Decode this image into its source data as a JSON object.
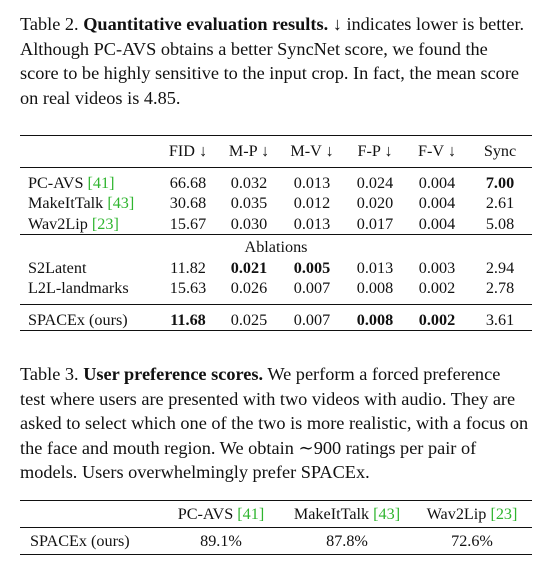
{
  "table2": {
    "caption_label": "Table 2.",
    "caption_title": "Quantitative evaluation results.",
    "caption_text": "↓ indicates lower is better. Although PC-AVS obtains a better SyncNet score, we found the score to be highly sensitive to the input crop. In fact, the mean score on real videos is 4.85.",
    "headers": [
      "",
      "FID ↓",
      "M-P ↓",
      "M-V ↓",
      "F-P ↓",
      "F-V ↓",
      "Sync"
    ],
    "rows_main": [
      {
        "name": "PC-AVS",
        "cite": "[41]",
        "values": [
          "66.68",
          "0.032",
          "0.013",
          "0.024",
          "0.004",
          "7.00"
        ],
        "bold": [
          false,
          false,
          false,
          false,
          false,
          true
        ]
      },
      {
        "name": "MakeItTalk",
        "cite": "[43]",
        "values": [
          "30.68",
          "0.035",
          "0.012",
          "0.020",
          "0.004",
          "2.61"
        ],
        "bold": [
          false,
          false,
          false,
          false,
          false,
          false
        ]
      },
      {
        "name": "Wav2Lip",
        "cite": "[23]",
        "values": [
          "15.67",
          "0.030",
          "0.013",
          "0.017",
          "0.004",
          "5.08"
        ],
        "bold": [
          false,
          false,
          false,
          false,
          false,
          false
        ]
      }
    ],
    "ablations_label": "Ablations",
    "rows_ablation": [
      {
        "name": "S2Latent",
        "cite": "",
        "values": [
          "11.82",
          "0.021",
          "0.005",
          "0.013",
          "0.003",
          "2.94"
        ],
        "bold": [
          false,
          true,
          true,
          false,
          false,
          false
        ]
      },
      {
        "name": "L2L-landmarks",
        "cite": "",
        "values": [
          "15.63",
          "0.026",
          "0.007",
          "0.008",
          "0.002",
          "2.78"
        ],
        "bold": [
          false,
          false,
          false,
          false,
          false,
          false
        ]
      }
    ],
    "row_final": {
      "name": "SPACEx (ours)",
      "cite": "",
      "values": [
        "11.68",
        "0.025",
        "0.007",
        "0.008",
        "0.002",
        "3.61"
      ],
      "bold": [
        true,
        false,
        false,
        true,
        true,
        false
      ]
    }
  },
  "table3": {
    "caption_label": "Table 3.",
    "caption_title": "User preference scores.",
    "caption_text": "We perform a forced preference test where users are presented with two videos with audio. They are asked to select which one of the two is more realistic, with a focus on the face and mouth region. We obtain ∼900 ratings per pair of models. Users overwhelmingly prefer SPACEx.",
    "headers": [
      {
        "name": "",
        "cite": ""
      },
      {
        "name": "PC-AVS",
        "cite": "[41]"
      },
      {
        "name": "MakeItTalk",
        "cite": "[43]"
      },
      {
        "name": "Wav2Lip",
        "cite": "[23]"
      }
    ],
    "row": {
      "name": "SPACEx (ours)",
      "values": [
        "89.1%",
        "87.8%",
        "72.6%"
      ]
    }
  }
}
